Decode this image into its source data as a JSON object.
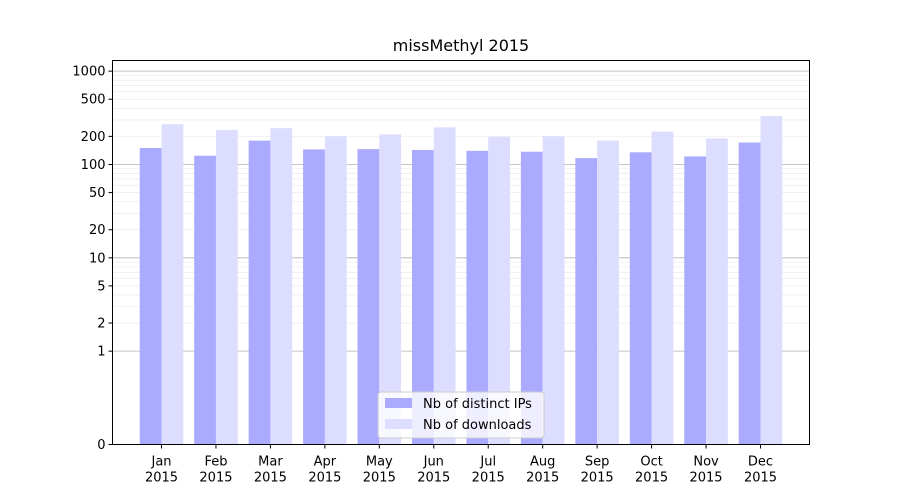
{
  "chart_data": {
    "type": "bar",
    "title": "missMethyl 2015",
    "xlabel": "",
    "ylabel": "",
    "yscale": "symlog",
    "ylim": [
      0,
      1300
    ],
    "y_ticks": [
      0,
      1,
      2,
      5,
      10,
      20,
      50,
      100,
      200,
      500,
      1000
    ],
    "grid": true,
    "legend_position": "lower center",
    "categories": [
      [
        "Jan",
        "2015"
      ],
      [
        "Feb",
        "2015"
      ],
      [
        "Mar",
        "2015"
      ],
      [
        "Apr",
        "2015"
      ],
      [
        "May",
        "2015"
      ],
      [
        "Jun",
        "2015"
      ],
      [
        "Jul",
        "2015"
      ],
      [
        "Aug",
        "2015"
      ],
      [
        "Sep",
        "2015"
      ],
      [
        "Oct",
        "2015"
      ],
      [
        "Nov",
        "2015"
      ],
      [
        "Dec",
        "2015"
      ]
    ],
    "series": [
      {
        "name": "Nb of distinct IPs",
        "color": "#aaaaff",
        "values": [
          150,
          124,
          180,
          145,
          146,
          143,
          140,
          137,
          117,
          135,
          122,
          172
        ]
      },
      {
        "name": "Nb of downloads",
        "color": "#ddddff",
        "values": [
          270,
          235,
          245,
          200,
          210,
          250,
          198,
          200,
          180,
          225,
          190,
          330
        ]
      }
    ]
  }
}
